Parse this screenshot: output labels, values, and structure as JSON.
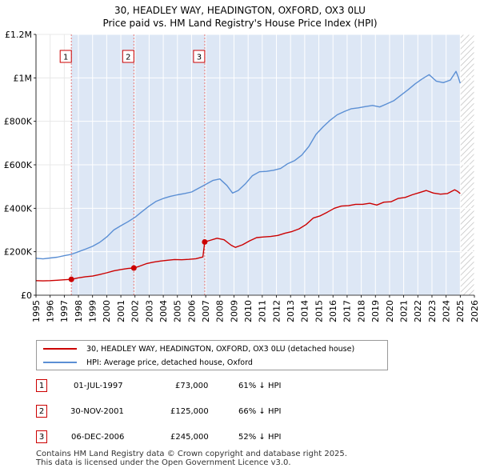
{
  "title": "30, HEADLEY WAY, HEADINGTON, OXFORD, OX3 0LU",
  "subtitle": "Price paid vs. HM Land Registry's House Price Index (HPI)",
  "colors": {
    "price_paid": "#cc0000",
    "hpi": "#5b8fd4",
    "band": "#dde7f5",
    "vline": "#e57a7a"
  },
  "chart_data": {
    "type": "line",
    "title": "30, HEADLEY WAY, HEADINGTON, OXFORD, OX3 0LU",
    "subtitle": "Price paid vs. HM Land Registry's House Price Index (HPI)",
    "xlim": [
      1995,
      2026
    ],
    "ylim": [
      0,
      1200000
    ],
    "xticks": [
      1995,
      1996,
      1997,
      1998,
      1999,
      2000,
      2001,
      2002,
      2003,
      2004,
      2005,
      2006,
      2007,
      2008,
      2009,
      2010,
      2011,
      2012,
      2013,
      2014,
      2015,
      2016,
      2017,
      2018,
      2019,
      2020,
      2021,
      2022,
      2023,
      2024,
      2025,
      2026
    ],
    "yticks": [
      {
        "value": 0,
        "label": "£0"
      },
      {
        "value": 200000,
        "label": "£200K"
      },
      {
        "value": 400000,
        "label": "£400K"
      },
      {
        "value": 600000,
        "label": "£600K"
      },
      {
        "value": 800000,
        "label": "£800K"
      },
      {
        "value": 1000000,
        "label": "£1M"
      },
      {
        "value": 1200000,
        "label": "£1.2M"
      }
    ],
    "shaded_from": 1997.5,
    "future_hatch_from": 2025.0,
    "series": [
      {
        "name": "30, HEADLEY WAY, HEADINGTON, OXFORD, OX3 0LU (detached house)",
        "color": "#cc0000",
        "points": [
          [
            1995.0,
            67000
          ],
          [
            1995.5,
            66000
          ],
          [
            1996.0,
            67000
          ],
          [
            1996.5,
            69000
          ],
          [
            1997.0,
            71000
          ],
          [
            1997.5,
            73000
          ],
          [
            1998.0,
            80000
          ],
          [
            1998.5,
            85000
          ],
          [
            1999.0,
            88000
          ],
          [
            1999.5,
            95000
          ],
          [
            2000.0,
            103000
          ],
          [
            2000.5,
            112000
          ],
          [
            2001.0,
            118000
          ],
          [
            2001.5,
            123000
          ],
          [
            2001.92,
            125000
          ],
          [
            2002.3,
            133000
          ],
          [
            2002.8,
            145000
          ],
          [
            2003.3,
            152000
          ],
          [
            2003.8,
            157000
          ],
          [
            2004.3,
            161000
          ],
          [
            2004.8,
            164000
          ],
          [
            2005.3,
            163000
          ],
          [
            2005.8,
            165000
          ],
          [
            2006.3,
            168000
          ],
          [
            2006.8,
            176000
          ],
          [
            2006.93,
            245000
          ],
          [
            2007.3,
            252000
          ],
          [
            2007.8,
            262000
          ],
          [
            2008.3,
            255000
          ],
          [
            2008.8,
            230000
          ],
          [
            2009.1,
            220000
          ],
          [
            2009.6,
            232000
          ],
          [
            2010.1,
            250000
          ],
          [
            2010.6,
            265000
          ],
          [
            2011.1,
            268000
          ],
          [
            2011.6,
            270000
          ],
          [
            2012.1,
            275000
          ],
          [
            2012.6,
            285000
          ],
          [
            2013.1,
            293000
          ],
          [
            2013.6,
            305000
          ],
          [
            2014.1,
            325000
          ],
          [
            2014.6,
            355000
          ],
          [
            2015.1,
            365000
          ],
          [
            2015.6,
            382000
          ],
          [
            2016.1,
            400000
          ],
          [
            2016.6,
            410000
          ],
          [
            2017.1,
            412000
          ],
          [
            2017.6,
            418000
          ],
          [
            2018.1,
            418000
          ],
          [
            2018.6,
            423000
          ],
          [
            2019.1,
            415000
          ],
          [
            2019.6,
            428000
          ],
          [
            2020.1,
            430000
          ],
          [
            2020.6,
            445000
          ],
          [
            2021.1,
            450000
          ],
          [
            2021.6,
            462000
          ],
          [
            2022.1,
            472000
          ],
          [
            2022.6,
            482000
          ],
          [
            2023.1,
            470000
          ],
          [
            2023.6,
            465000
          ],
          [
            2024.1,
            468000
          ],
          [
            2024.6,
            485000
          ],
          [
            2024.8,
            478000
          ],
          [
            2025.0,
            468000
          ]
        ]
      },
      {
        "name": "HPI: Average price, detached house, Oxford",
        "color": "#5b8fd4",
        "points": [
          [
            1995.0,
            170000
          ],
          [
            1995.5,
            167000
          ],
          [
            1996.0,
            171000
          ],
          [
            1996.5,
            175000
          ],
          [
            1997.0,
            182000
          ],
          [
            1997.5,
            188000
          ],
          [
            1998.0,
            200000
          ],
          [
            1998.5,
            212000
          ],
          [
            1999.0,
            225000
          ],
          [
            1999.5,
            243000
          ],
          [
            2000.0,
            268000
          ],
          [
            2000.5,
            300000
          ],
          [
            2001.0,
            320000
          ],
          [
            2001.5,
            338000
          ],
          [
            2002.0,
            358000
          ],
          [
            2002.5,
            385000
          ],
          [
            2003.0,
            410000
          ],
          [
            2003.5,
            432000
          ],
          [
            2004.0,
            445000
          ],
          [
            2004.5,
            455000
          ],
          [
            2005.0,
            462000
          ],
          [
            2005.5,
            468000
          ],
          [
            2006.0,
            475000
          ],
          [
            2006.5,
            492000
          ],
          [
            2007.0,
            510000
          ],
          [
            2007.5,
            528000
          ],
          [
            2008.0,
            535000
          ],
          [
            2008.5,
            505000
          ],
          [
            2008.9,
            470000
          ],
          [
            2009.3,
            482000
          ],
          [
            2009.8,
            512000
          ],
          [
            2010.3,
            550000
          ],
          [
            2010.8,
            568000
          ],
          [
            2011.3,
            570000
          ],
          [
            2011.8,
            575000
          ],
          [
            2012.3,
            583000
          ],
          [
            2012.8,
            605000
          ],
          [
            2013.3,
            620000
          ],
          [
            2013.8,
            645000
          ],
          [
            2014.3,
            685000
          ],
          [
            2014.8,
            740000
          ],
          [
            2015.3,
            775000
          ],
          [
            2015.8,
            805000
          ],
          [
            2016.3,
            830000
          ],
          [
            2016.8,
            845000
          ],
          [
            2017.3,
            858000
          ],
          [
            2017.8,
            862000
          ],
          [
            2018.3,
            868000
          ],
          [
            2018.8,
            873000
          ],
          [
            2019.3,
            866000
          ],
          [
            2019.8,
            880000
          ],
          [
            2020.3,
            895000
          ],
          [
            2020.8,
            920000
          ],
          [
            2021.3,
            945000
          ],
          [
            2021.8,
            972000
          ],
          [
            2022.3,
            995000
          ],
          [
            2022.8,
            1015000
          ],
          [
            2023.3,
            985000
          ],
          [
            2023.8,
            978000
          ],
          [
            2024.3,
            990000
          ],
          [
            2024.7,
            1030000
          ],
          [
            2024.85,
            1005000
          ],
          [
            2025.0,
            975000
          ]
        ]
      }
    ],
    "transactions": [
      {
        "num": "1",
        "x": 1997.5,
        "price": 73000,
        "date": "01-JUL-1997",
        "price_label": "£73,000",
        "hpi_label": "61% ↓ HPI"
      },
      {
        "num": "2",
        "x": 2001.92,
        "price": 125000,
        "date": "30-NOV-2001",
        "price_label": "£125,000",
        "hpi_label": "66% ↓ HPI"
      },
      {
        "num": "3",
        "x": 2006.93,
        "price": 245000,
        "date": "06-DEC-2006",
        "price_label": "£245,000",
        "hpi_label": "52% ↓ HPI"
      }
    ]
  },
  "legend": {
    "price_paid": "30, HEADLEY WAY, HEADINGTON, OXFORD, OX3 0LU (detached house)",
    "hpi": "HPI: Average price, detached house, Oxford"
  },
  "footer": {
    "line1": "Contains HM Land Registry data © Crown copyright and database right 2025.",
    "line2": "This data is licensed under the Open Government Licence v3.0."
  }
}
